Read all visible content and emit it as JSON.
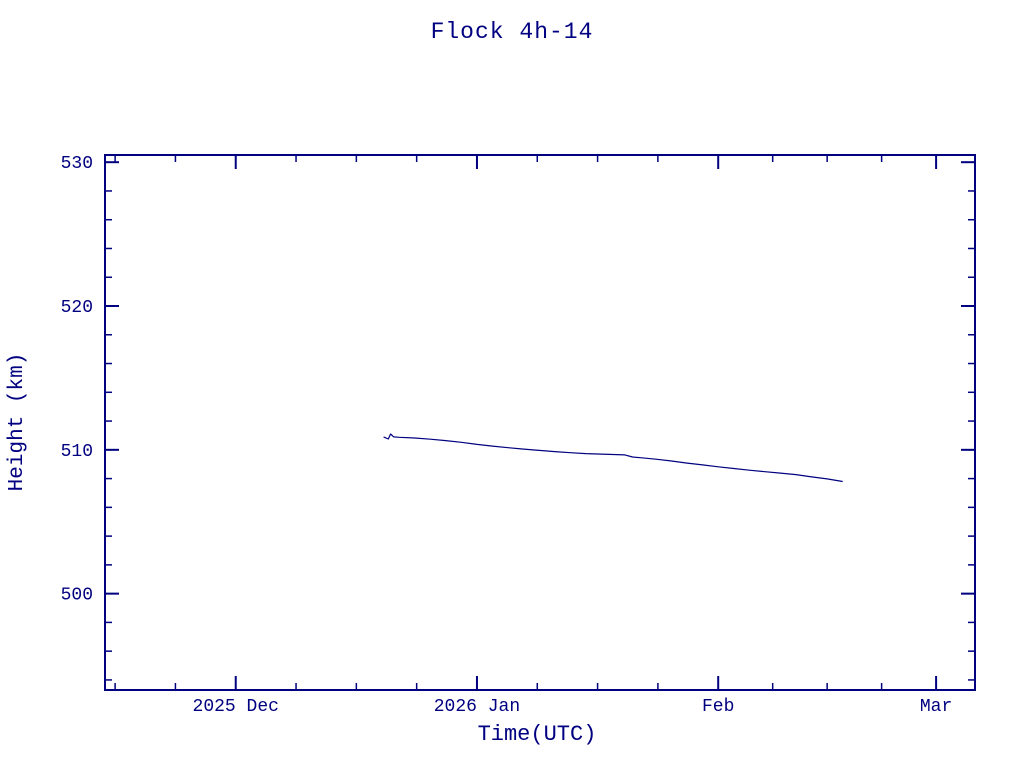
{
  "chart_data": {
    "type": "line",
    "title": "Flock 4h-14",
    "xlabel": "Time(UTC)",
    "ylabel": "Height (km)",
    "x_unit": "days since 2025-12-01",
    "xlim": [
      -16.8,
      95.0
    ],
    "ylim": [
      493.3,
      530.5
    ],
    "x_ticks": [
      {
        "day": 0,
        "label": "2025 Dec"
      },
      {
        "day": 31,
        "label": "2026 Jan"
      },
      {
        "day": 62,
        "label": "Feb"
      },
      {
        "day": 90,
        "label": "Mar"
      }
    ],
    "y_ticks": [
      {
        "value": 500,
        "label": "500"
      },
      {
        "value": 510,
        "label": "510"
      },
      {
        "value": 520,
        "label": "520"
      },
      {
        "value": 530,
        "label": "530"
      }
    ],
    "y_minor_step": 2,
    "axis_color": "#000080",
    "line_color": "#000080",
    "text_color": "#000080",
    "legend": "none",
    "grid": false,
    "series": [
      {
        "name": "Flock 4h-14 height",
        "points": [
          [
            19.0,
            510.9
          ],
          [
            19.6,
            510.75
          ],
          [
            19.9,
            511.1
          ],
          [
            20.3,
            510.9
          ],
          [
            21.0,
            510.87
          ],
          [
            23.0,
            510.82
          ],
          [
            25.0,
            510.74
          ],
          [
            27.0,
            510.64
          ],
          [
            29.0,
            510.52
          ],
          [
            31.0,
            510.38
          ],
          [
            33.0,
            510.26
          ],
          [
            35.0,
            510.15
          ],
          [
            37.0,
            510.05
          ],
          [
            39.0,
            509.96
          ],
          [
            41.0,
            509.88
          ],
          [
            43.0,
            509.8
          ],
          [
            45.0,
            509.74
          ],
          [
            47.0,
            509.7
          ],
          [
            49.0,
            509.67
          ],
          [
            50.0,
            509.65
          ],
          [
            51.0,
            509.5
          ],
          [
            52.0,
            509.45
          ],
          [
            54.0,
            509.35
          ],
          [
            56.0,
            509.22
          ],
          [
            58.0,
            509.08
          ],
          [
            60.0,
            508.95
          ],
          [
            62.0,
            508.82
          ],
          [
            64.0,
            508.7
          ],
          [
            66.0,
            508.58
          ],
          [
            68.0,
            508.48
          ],
          [
            70.0,
            508.38
          ],
          [
            72.0,
            508.28
          ],
          [
            74.0,
            508.12
          ],
          [
            76.0,
            507.98
          ],
          [
            78.0,
            507.8
          ]
        ]
      }
    ]
  }
}
